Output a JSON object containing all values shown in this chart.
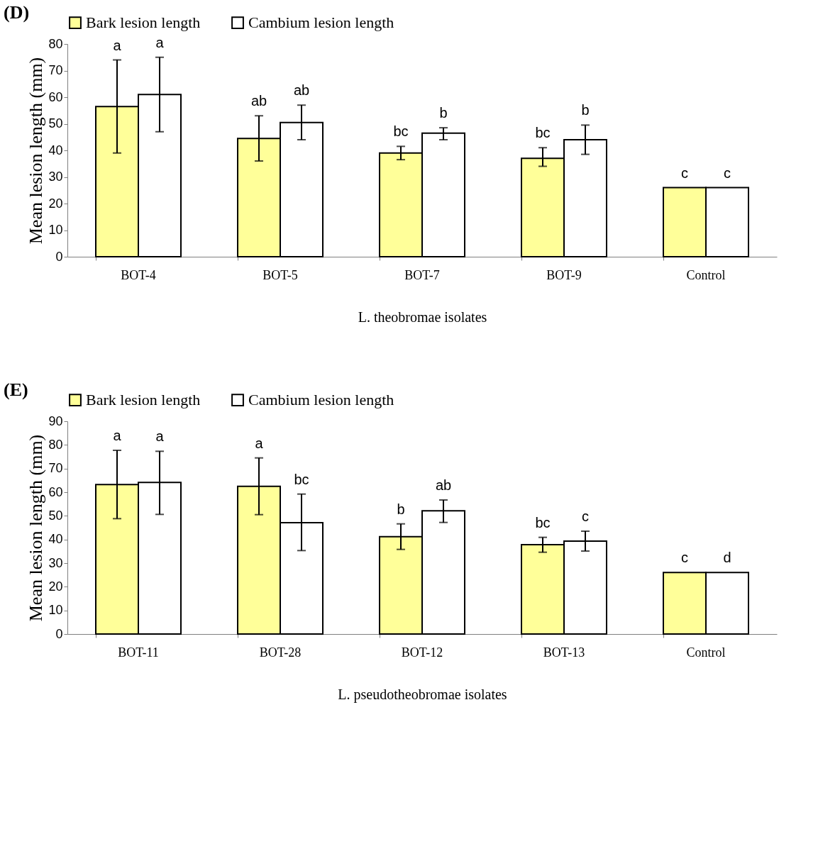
{
  "chart_data": [
    {
      "type": "bar",
      "title": "(D)",
      "xlabel": "L. theobromae isolates",
      "ylabel": "Mean lesion length  (mm)",
      "categories": [
        "BOT-4",
        "BOT-5",
        "BOT-7",
        "BOT-9",
        "Control"
      ],
      "series": [
        {
          "name": "Bark lesion length",
          "color": "#ffff99",
          "values": [
            56.5,
            44.5,
            39,
            37,
            26
          ],
          "errors": [
            [
              39,
              74
            ],
            [
              36,
              53
            ],
            [
              36.5,
              41.5
            ],
            [
              34,
              41
            ],
            null
          ]
        },
        {
          "name": "Cambium lesion length",
          "color": "#ffffff",
          "values": [
            61,
            50.5,
            46.5,
            44,
            26
          ],
          "errors": [
            [
              47,
              75
            ],
            [
              44,
              57
            ],
            [
              44,
              48.5
            ],
            [
              38.5,
              49.5
            ],
            null
          ]
        }
      ],
      "ylim": [
        0,
        80
      ],
      "yticks": [
        0,
        10,
        20,
        30,
        40,
        50,
        60,
        70,
        80
      ],
      "grid": false,
      "legend": "top",
      "annotations": [
        "a",
        "a",
        "ab",
        "ab",
        "bc",
        "b",
        "bc",
        "b",
        "c",
        "c"
      ]
    },
    {
      "type": "bar",
      "title": "(E)",
      "xlabel": "L. pseudotheobromae isolates",
      "ylabel": "Mean lesion length  (mm)",
      "categories": [
        "BOT-11",
        "BOT-28",
        "BOT-12",
        "BOT-13",
        "Control"
      ],
      "series": [
        {
          "name": "Bark lesion length",
          "color": "#ffff99",
          "values": [
            63.2,
            62.5,
            41.2,
            37.8,
            26
          ],
          "errors": [
            [
              48.8,
              77.7
            ],
            [
              50.5,
              74.5
            ],
            [
              35.8,
              46.6
            ],
            [
              34.6,
              40.9
            ],
            null
          ]
        },
        {
          "name": "Cambium lesion length",
          "color": "#ffffff",
          "values": [
            64.1,
            47.1,
            52.1,
            39.3,
            26
          ],
          "errors": [
            [
              50.6,
              77.3
            ],
            [
              35.3,
              59.2
            ],
            [
              47.2,
              56.7
            ],
            [
              35.1,
              43.5
            ],
            null
          ]
        }
      ],
      "ylim": [
        0,
        90
      ],
      "yticks": [
        0,
        10,
        20,
        30,
        40,
        50,
        60,
        70,
        80,
        90
      ],
      "grid": false,
      "legend": "top",
      "annotations": [
        "a",
        "a",
        "a",
        "bc",
        "b",
        "ab",
        "bc",
        "c",
        "c",
        "d"
      ]
    }
  ]
}
